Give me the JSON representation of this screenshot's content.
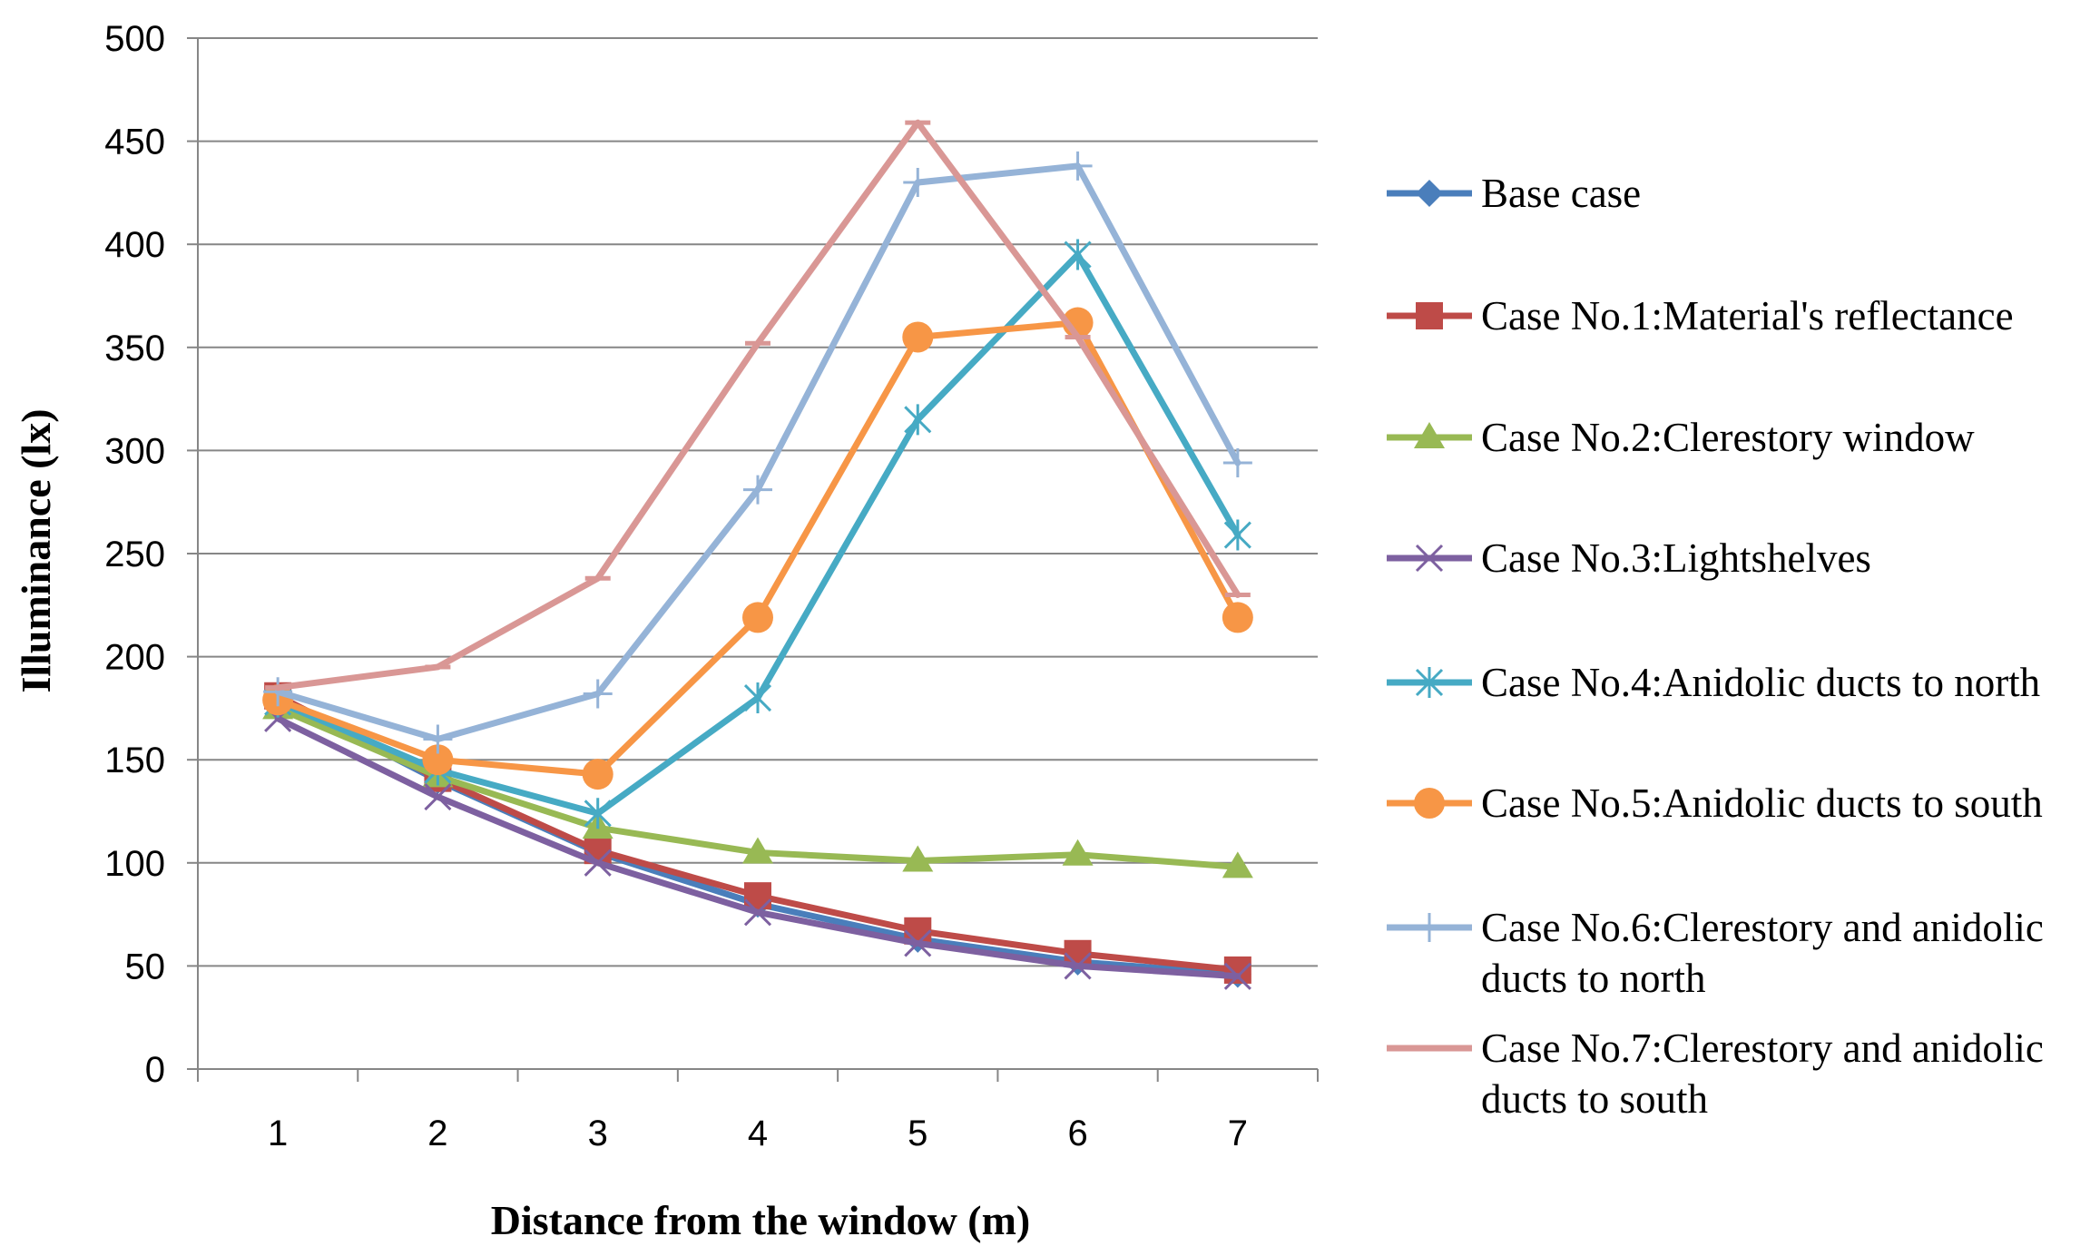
{
  "chart_data": {
    "type": "line",
    "title": "",
    "xlabel": "Distance from the window (m)",
    "ylabel": "Illuminance (lx)",
    "categories": [
      "1",
      "2",
      "3",
      "4",
      "5",
      "6",
      "7"
    ],
    "ylim": [
      0,
      500
    ],
    "yticks": [
      0,
      50,
      100,
      150,
      200,
      250,
      300,
      350,
      400,
      450,
      500
    ],
    "grid": "horizontal",
    "legend_position": "right",
    "series": [
      {
        "name": "Base case",
        "legend_lines": [
          "Base case"
        ],
        "color": "#4a7ebb",
        "marker": "diamond",
        "values": [
          180,
          140,
          105,
          80,
          63,
          52,
          46
        ]
      },
      {
        "name": "Case No.1:Material's reflectance",
        "legend_lines": [
          "Case No.1:Material's reflectance"
        ],
        "color": "#be4b48",
        "marker": "square",
        "values": [
          181,
          141,
          106,
          84,
          67,
          56,
          48
        ]
      },
      {
        "name": "Case No.2:Clerestory window",
        "legend_lines": [
          "Case No.2:Clerestory window"
        ],
        "color": "#98b954",
        "marker": "triangle",
        "values": [
          175,
          142,
          117,
          105,
          101,
          104,
          98
        ]
      },
      {
        "name": "Case No.3:Lightshelves",
        "legend_lines": [
          "Case No.3:Lightshelves"
        ],
        "color": "#7d60a0",
        "marker": "x",
        "values": [
          170,
          132,
          100,
          76,
          61,
          50,
          45
        ]
      },
      {
        "name": "Case No.4:Anidolic ducts to north",
        "legend_lines": [
          "Case No.4:Anidolic ducts to north"
        ],
        "color": "#46aac4",
        "marker": "star",
        "values": [
          178,
          145,
          124,
          180,
          315,
          395,
          259
        ]
      },
      {
        "name": "Case No.5:Anidolic ducts to south",
        "legend_lines": [
          "Case No.5:Anidolic ducts to south"
        ],
        "color": "#f79646",
        "marker": "circle",
        "values": [
          179,
          150,
          143,
          219,
          355,
          362,
          219
        ]
      },
      {
        "name": "Case No.6:Clerestory and anidolic ducts to north",
        "legend_lines": [
          "Case No.6:Clerestory and anidolic",
          "ducts to north"
        ],
        "color": "#95b3d7",
        "marker": "plus",
        "values": [
          183,
          160,
          182,
          281,
          430,
          438,
          294
        ]
      },
      {
        "name": "Case No.7:Clerestory and anidolic ducts to south",
        "legend_lines": [
          "Case No.7:Clerestory and anidolic",
          "ducts to south"
        ],
        "color": "#d99795",
        "marker": "dash",
        "values": [
          185,
          195,
          238,
          352,
          459,
          355,
          230
        ]
      }
    ]
  }
}
